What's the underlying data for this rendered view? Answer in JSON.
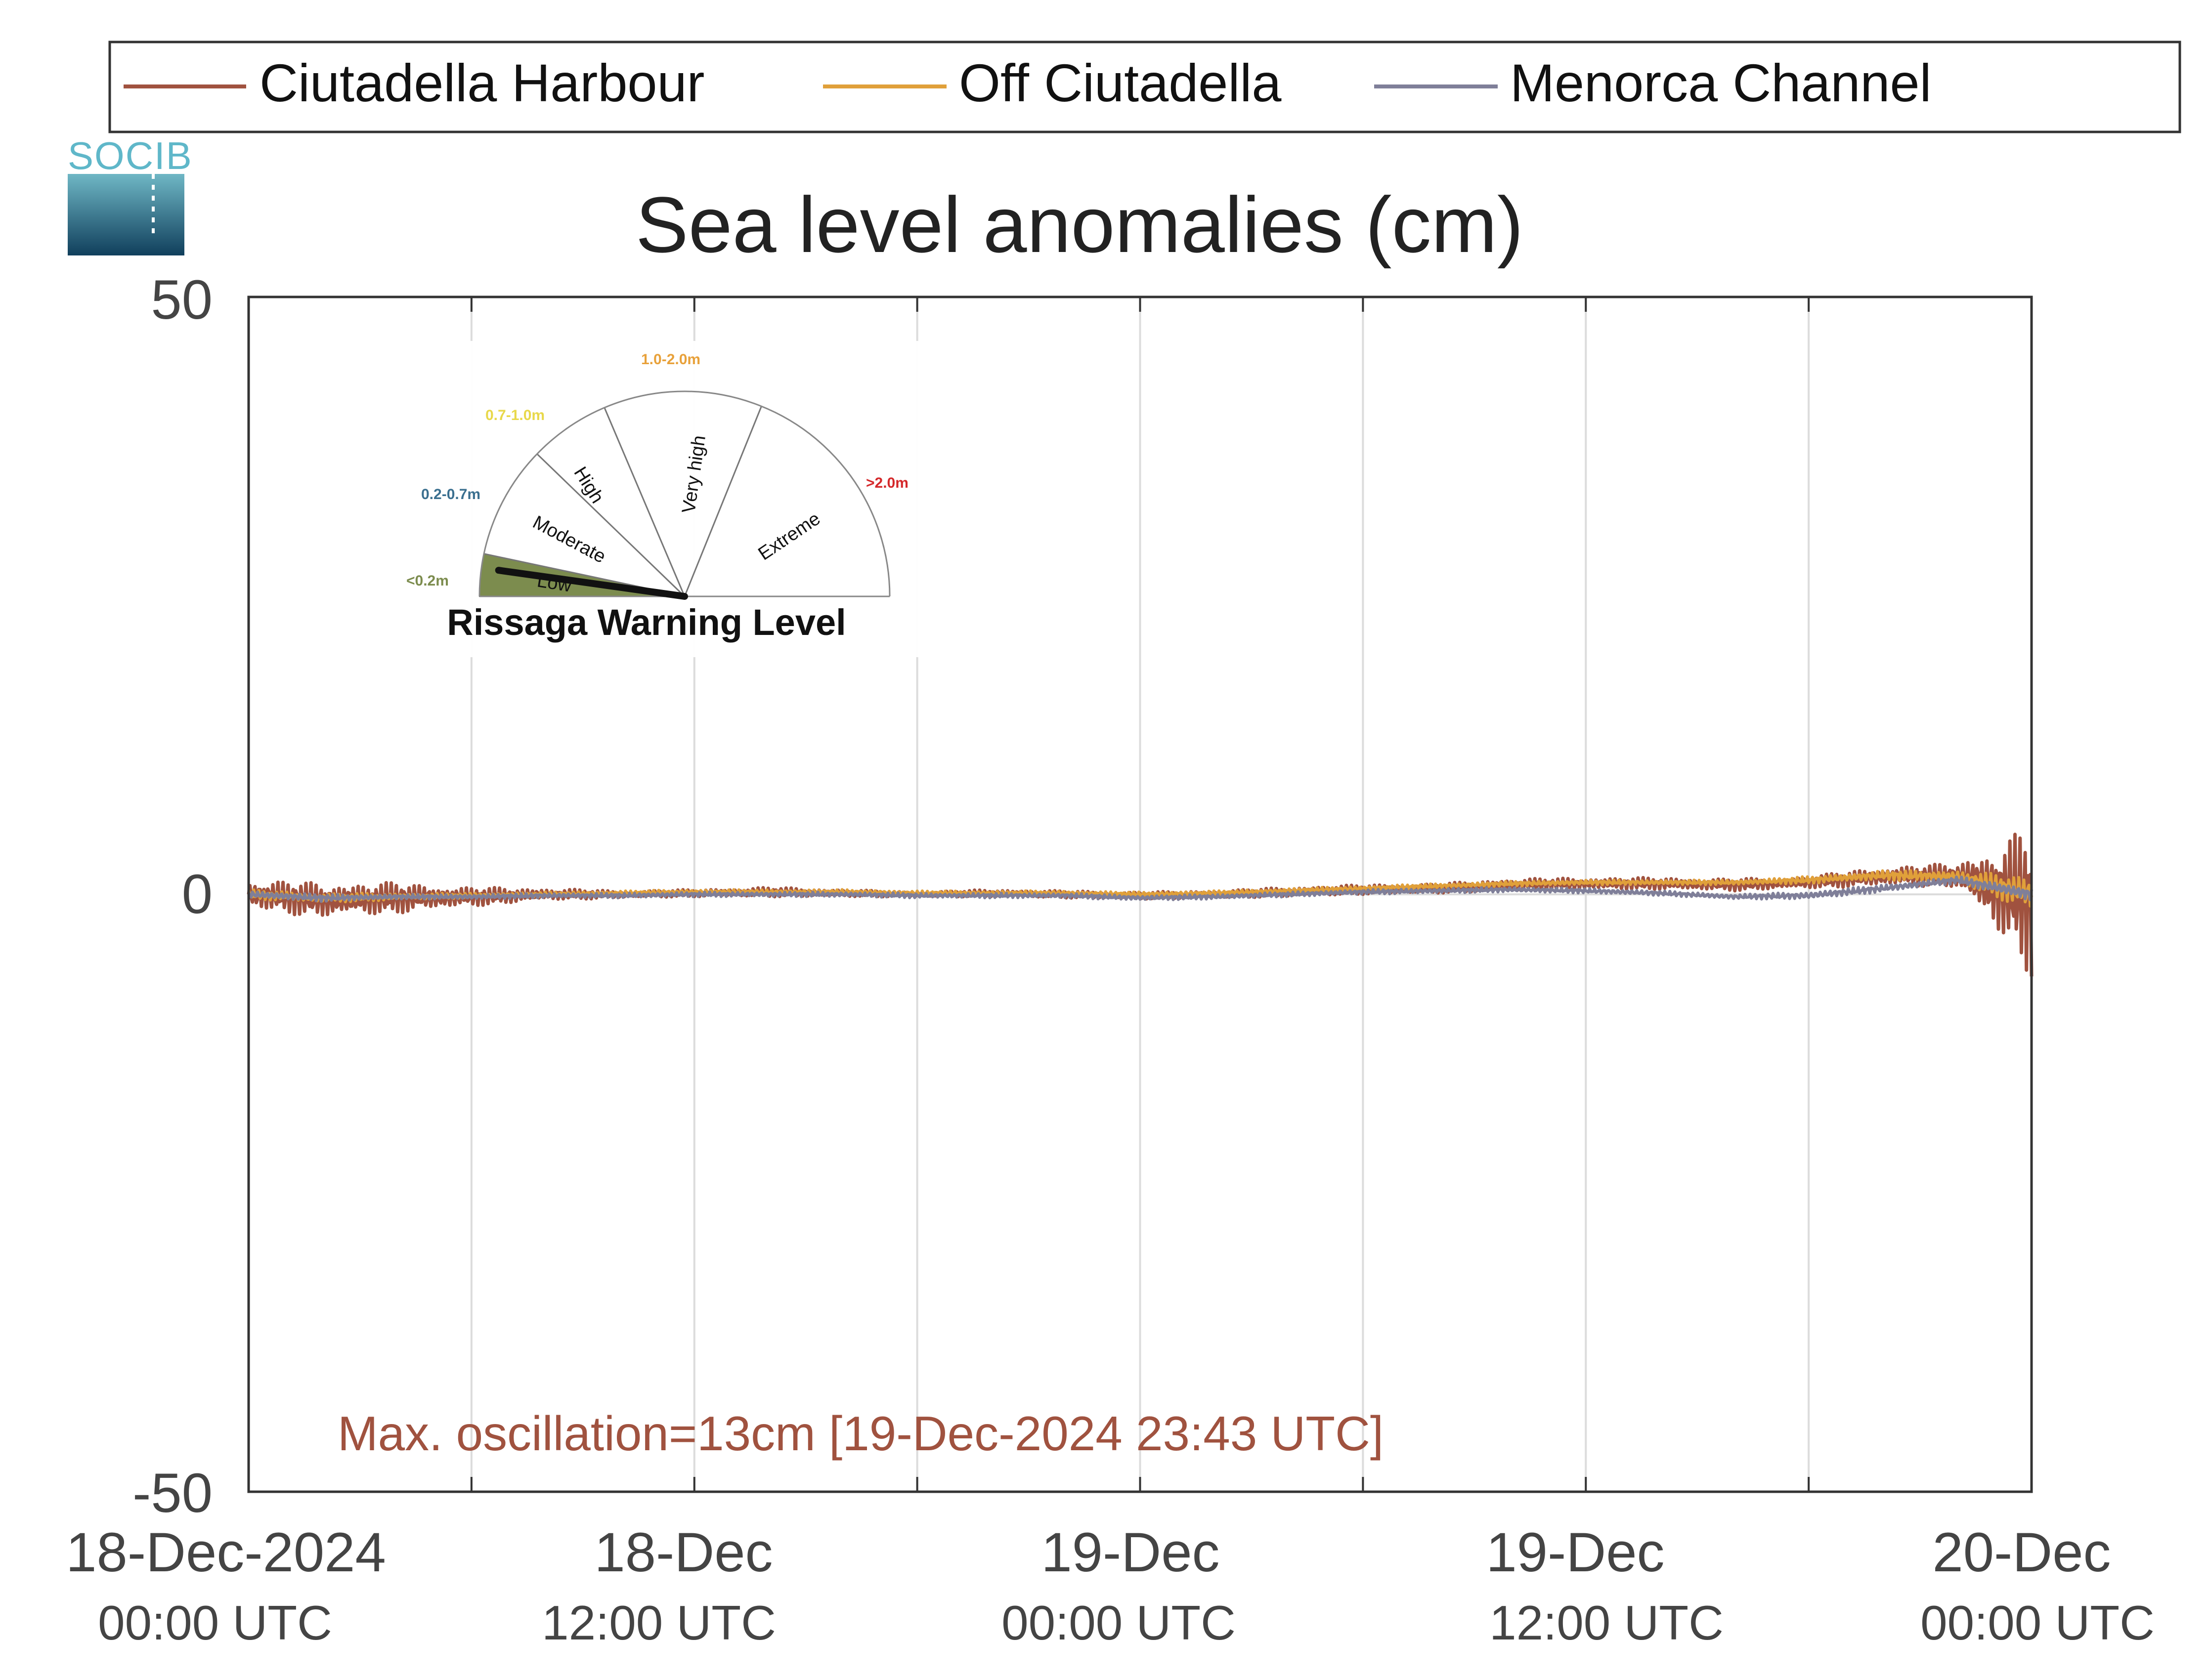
{
  "logo": {
    "text": "SOCIB"
  },
  "chart_data": {
    "type": "line",
    "title": "Sea level anomalies (cm)",
    "xlabel": "",
    "ylabel": "",
    "ylim": [
      -50,
      50
    ],
    "xlim": [
      "2024-12-18 00:00",
      "2024-12-20 00:00"
    ],
    "grid": true,
    "legend_position": "top",
    "y_ticks": [
      "50",
      "0",
      "-50"
    ],
    "x_ticks": [
      {
        "date": "18-Dec-2024",
        "time": "00:00 UTC"
      },
      {
        "date": "18-Dec",
        "time": "12:00 UTC"
      },
      {
        "date": "19-Dec",
        "time": "00:00 UTC"
      },
      {
        "date": "19-Dec",
        "time": "12:00 UTC"
      },
      {
        "date": "20-Dec",
        "time": "00:00 UTC"
      }
    ],
    "series": [
      {
        "name": "Ciutadella Harbour",
        "color": "#a0523f",
        "x": [
          "2024-12-18 00:00",
          "2024-12-18 02:00",
          "2024-12-18 04:00",
          "2024-12-18 06:00",
          "2024-12-18 08:00",
          "2024-12-18 10:00",
          "2024-12-18 12:00",
          "2024-12-18 14:00",
          "2024-12-18 16:00",
          "2024-12-18 18:00",
          "2024-12-18 20:00",
          "2024-12-18 22:00",
          "2024-12-19 00:00",
          "2024-12-19 02:00",
          "2024-12-19 04:00",
          "2024-12-19 06:00",
          "2024-12-19 08:00",
          "2024-12-19 10:00",
          "2024-12-19 12:00",
          "2024-12-19 14:00",
          "2024-12-19 16:00",
          "2024-12-19 18:00",
          "2024-12-19 20:00",
          "2024-12-19 22:00",
          "2024-12-20 00:00"
        ],
        "y": [
          0,
          -0.5,
          -0.3,
          -0.2,
          0,
          0,
          0.1,
          0.2,
          0.1,
          0,
          0.1,
          0,
          -0.1,
          0,
          0.2,
          0.4,
          0.5,
          0.8,
          0.9,
          0.9,
          0.8,
          1.0,
          1.5,
          1.6,
          -0.5
        ],
        "amplitude_cm": [
          1.2,
          1.5,
          1.3,
          0.8,
          0.5,
          0.3,
          0.3,
          0.4,
          0.3,
          0.2,
          0.3,
          0.3,
          0.3,
          0.3,
          0.4,
          0.4,
          0.4,
          0.5,
          0.5,
          0.5,
          0.5,
          0.5,
          0.8,
          1.0,
          6.5
        ]
      },
      {
        "name": "Off Ciutadella",
        "color": "#e0a03a",
        "x": [
          "2024-12-18 00:00",
          "2024-12-18 02:00",
          "2024-12-18 04:00",
          "2024-12-18 06:00",
          "2024-12-18 08:00",
          "2024-12-18 10:00",
          "2024-12-18 12:00",
          "2024-12-18 14:00",
          "2024-12-18 16:00",
          "2024-12-18 18:00",
          "2024-12-18 20:00",
          "2024-12-18 22:00",
          "2024-12-19 00:00",
          "2024-12-19 02:00",
          "2024-12-19 04:00",
          "2024-12-19 06:00",
          "2024-12-19 08:00",
          "2024-12-19 10:00",
          "2024-12-19 12:00",
          "2024-12-19 14:00",
          "2024-12-19 16:00",
          "2024-12-19 18:00",
          "2024-12-19 20:00",
          "2024-12-19 22:00",
          "2024-12-20 00:00"
        ],
        "y": [
          0,
          -0.3,
          -0.2,
          -0.1,
          0,
          0.1,
          0.2,
          0.2,
          0.2,
          0.1,
          0.1,
          0.1,
          0,
          0.1,
          0.3,
          0.5,
          0.7,
          0.9,
          1.0,
          1.0,
          1.0,
          1.2,
          1.6,
          1.5,
          0
        ],
        "amplitude_cm": [
          0.4,
          0.4,
          0.3,
          0.2,
          0.2,
          0.2,
          0.2,
          0.2,
          0.2,
          0.2,
          0.2,
          0.2,
          0.2,
          0.2,
          0.2,
          0.2,
          0.2,
          0.2,
          0.2,
          0.2,
          0.2,
          0.3,
          0.4,
          0.5,
          1.5
        ]
      },
      {
        "name": "Menorca Channel",
        "color": "#7f7f99",
        "x": [
          "2024-12-18 00:00",
          "2024-12-18 02:00",
          "2024-12-18 04:00",
          "2024-12-18 06:00",
          "2024-12-18 08:00",
          "2024-12-18 10:00",
          "2024-12-18 12:00",
          "2024-12-18 14:00",
          "2024-12-18 16:00",
          "2024-12-18 18:00",
          "2024-12-18 20:00",
          "2024-12-18 22:00",
          "2024-12-19 00:00",
          "2024-12-19 02:00",
          "2024-12-19 04:00",
          "2024-12-19 06:00",
          "2024-12-19 08:00",
          "2024-12-19 10:00",
          "2024-12-19 12:00",
          "2024-12-19 14:00",
          "2024-12-19 16:00",
          "2024-12-19 18:00",
          "2024-12-19 20:00",
          "2024-12-19 22:00",
          "2024-12-20 00:00"
        ],
        "y": [
          0,
          -0.3,
          -0.2,
          -0.2,
          -0.1,
          -0.1,
          0,
          0,
          0,
          -0.1,
          -0.1,
          -0.1,
          -0.3,
          -0.2,
          0,
          0.2,
          0.3,
          0.4,
          0.3,
          0.1,
          -0.2,
          -0.1,
          0.5,
          1.2,
          0
        ],
        "amplitude_cm": [
          0.3,
          0.3,
          0.2,
          0.2,
          0.2,
          0.2,
          0.2,
          0.2,
          0.2,
          0.2,
          0.2,
          0.2,
          0.2,
          0.2,
          0.2,
          0.2,
          0.2,
          0.2,
          0.2,
          0.2,
          0.2,
          0.3,
          0.3,
          0.3,
          0.6
        ]
      }
    ],
    "annotation": {
      "text": "Max. oscillation=13cm [19-Dec-2024 23:43 UTC]",
      "color": "#a0523f"
    },
    "gauge": {
      "title": "Rissaga Warning Level",
      "current_level": "Low",
      "levels": [
        {
          "name": "Low",
          "range": "<0.2m",
          "color": "#7c8c4e"
        },
        {
          "name": "Moderate",
          "range": "0.2-0.7m",
          "color": "#3a6f8f"
        },
        {
          "name": "High",
          "range": "0.7-1.0m",
          "color": "#e8d84a"
        },
        {
          "name": "Very high",
          "range": "1.0-2.0m",
          "color": "#e8a13a"
        },
        {
          "name": "Extreme",
          "range": ">2.0m",
          "color": "#d4282a"
        }
      ]
    }
  }
}
